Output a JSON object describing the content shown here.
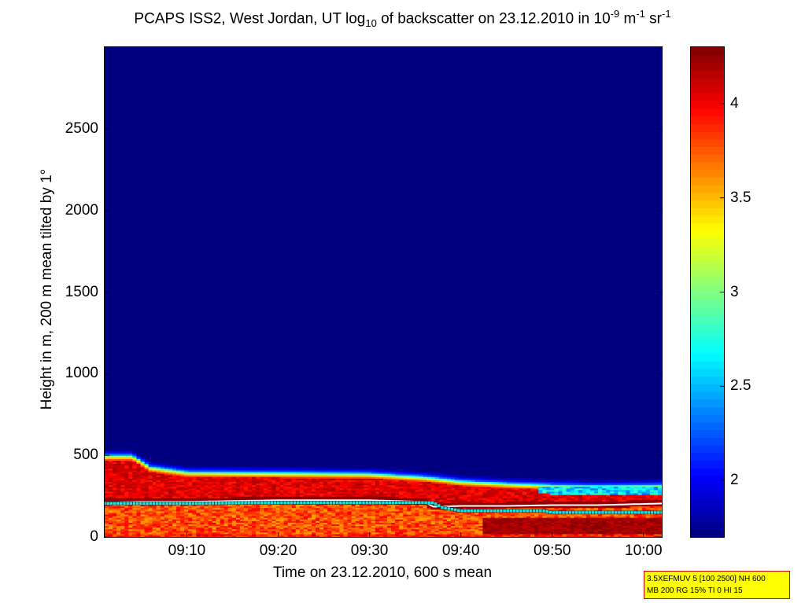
{
  "title": {
    "pre": "PCAPS ISS2, West Jordan, UT log",
    "sub10": "10",
    "mid": " of backscatter on 23.12.2010 in 10",
    "exp1": "-9",
    "unit_m": " m",
    "exp2": "-1",
    "unit_sr": " sr",
    "exp3": "-1"
  },
  "info_box": {
    "line1": "3.5XEFMUV 5 [100 2500] NH 600",
    "line2": "MB 200 RG 15% TI 0 HI 15"
  },
  "chart_data": {
    "type": "heatmap",
    "xlabel": "Time on 23.12.2010, 600 s mean",
    "ylabel": "Height in m, 200 m mean tilted by 1°",
    "x_range": [
      "09:01",
      "10:02"
    ],
    "y_range": [
      0,
      3000
    ],
    "x_ticks": [
      "09:10",
      "09:20",
      "09:30",
      "09:40",
      "09:50",
      "10:00"
    ],
    "y_ticks": [
      0,
      500,
      1000,
      1500,
      2000,
      2500
    ],
    "colorbar": {
      "range": [
        1.7,
        4.3
      ],
      "ticks": [
        "2",
        "2.5",
        "3",
        "3.5",
        "4"
      ],
      "colormap": "jet"
    },
    "background_value": 1.7,
    "aerosol_top_height_m": {
      "time": [
        "09:01",
        "09:04",
        "09:06",
        "09:10",
        "09:20",
        "09:30",
        "09:36",
        "09:40",
        "09:45",
        "09:50",
        "09:55",
        "10:02"
      ],
      "height": [
        500,
        500,
        430,
        400,
        395,
        390,
        370,
        345,
        330,
        320,
        315,
        320
      ]
    },
    "layer_height_white_m": {
      "time": [
        "09:01",
        "09:05",
        "09:10",
        "09:20",
        "09:30",
        "09:36",
        "09:37",
        "09:40",
        "09:45",
        "09:50",
        "09:55",
        "10:02"
      ],
      "height": [
        210,
        215,
        215,
        225,
        225,
        215,
        185,
        190,
        190,
        195,
        195,
        205
      ]
    },
    "layer_height_cyan_m": {
      "time": [
        "09:01",
        "09:10",
        "09:20",
        "09:30",
        "09:37",
        "09:38",
        "09:40",
        "09:49",
        "09:50",
        "10:02"
      ],
      "height": [
        205,
        205,
        210,
        210,
        210,
        180,
        160,
        160,
        150,
        150
      ]
    }
  },
  "colors": {
    "background": "#00008f",
    "cyan_marker": "#20e0e0",
    "white_line": "#ffffff",
    "info_box_fill": "#ffff00",
    "info_box_border": "#cc0000"
  }
}
